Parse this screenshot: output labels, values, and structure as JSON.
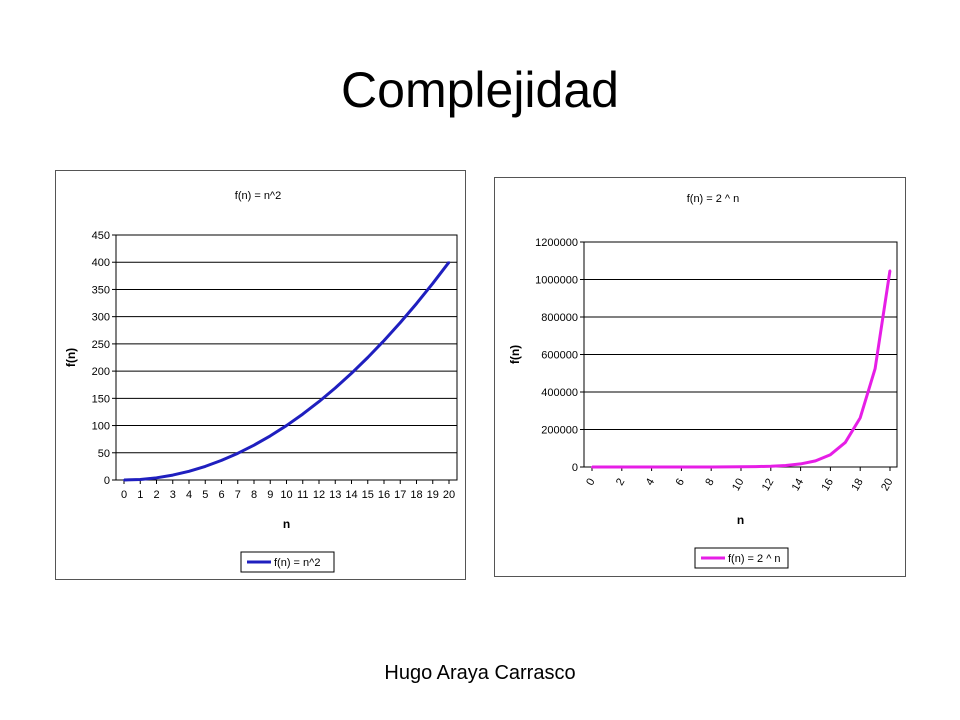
{
  "slide": {
    "title": "Complejidad",
    "footer": "Hugo Araya Carrasco"
  },
  "chart_data": [
    {
      "type": "line",
      "title": "f(n) = n^2",
      "xlabel": "n",
      "ylabel": "f(n)",
      "x": [
        0,
        1,
        2,
        3,
        4,
        5,
        6,
        7,
        8,
        9,
        10,
        11,
        12,
        13,
        14,
        15,
        16,
        17,
        18,
        19,
        20
      ],
      "series": [
        {
          "name": "f(n) = n^2",
          "color": "#1f1fbf",
          "values": [
            0,
            1,
            4,
            9,
            16,
            25,
            36,
            49,
            64,
            81,
            100,
            121,
            144,
            169,
            196,
            225,
            256,
            289,
            324,
            361,
            400
          ]
        }
      ],
      "ylim": [
        0,
        450
      ],
      "yticks": [
        0,
        50,
        100,
        150,
        200,
        250,
        300,
        350,
        400,
        450
      ],
      "xticks": [
        "0",
        "1",
        "2",
        "3",
        "4",
        "5",
        "6",
        "7",
        "8",
        "9",
        "10",
        "11",
        "12",
        "13",
        "14",
        "15",
        "16",
        "17",
        "18",
        "19",
        "20"
      ],
      "grid": true,
      "legend": "bottom"
    },
    {
      "type": "line",
      "title": "f(n) = 2 ^ n",
      "xlabel": "n",
      "ylabel": "f(n)",
      "x": [
        0,
        1,
        2,
        3,
        4,
        5,
        6,
        7,
        8,
        9,
        10,
        11,
        12,
        13,
        14,
        15,
        16,
        17,
        18,
        19,
        20
      ],
      "series": [
        {
          "name": "f(n) = 2 ^ n",
          "color": "#e61ee6",
          "values": [
            1,
            2,
            4,
            8,
            16,
            32,
            64,
            128,
            256,
            512,
            1024,
            2048,
            4096,
            8192,
            16384,
            32768,
            65536,
            131072,
            262144,
            524288,
            1048576
          ]
        }
      ],
      "ylim": [
        0,
        1200000
      ],
      "yticks": [
        0,
        200000,
        400000,
        600000,
        800000,
        1000000,
        1200000
      ],
      "xticks": [
        "0",
        "2",
        "4",
        "6",
        "8",
        "10",
        "12",
        "14",
        "16",
        "18",
        "20"
      ],
      "grid": true,
      "legend": "bottom"
    }
  ]
}
